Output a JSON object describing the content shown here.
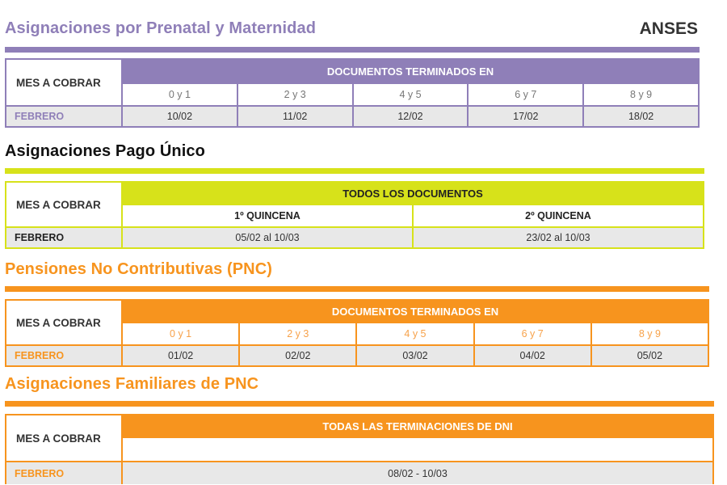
{
  "brand": "ANSES",
  "colors": {
    "purple": "#8f7fb8",
    "yellow": "#d7e21a",
    "orange": "#f7941e",
    "row_gray": "#e8e8e8"
  },
  "sections": [
    {
      "title": "Asignaciones por Prenatal y Maternidad",
      "mes_label": "MES A COBRAR",
      "header": "DOCUMENTOS TERMINADOS EN",
      "columns": [
        "0 y 1",
        "2 y 3",
        "4 y 5",
        "6 y 7",
        "8 y 9"
      ],
      "month": "FEBRERO",
      "values": [
        "10/02",
        "11/02",
        "12/02",
        "17/02",
        "18/02"
      ]
    },
    {
      "title": "Asignaciones Pago Único",
      "mes_label": "MES A COBRAR",
      "header": "TODOS LOS DOCUMENTOS",
      "columns": [
        "1º QUINCENA",
        "2º QUINCENA"
      ],
      "month": "FEBRERO",
      "values": [
        "05/02 al 10/03",
        "23/02 al 10/03"
      ]
    },
    {
      "title": "Pensiones No Contributivas (PNC)",
      "mes_label": "MES A COBRAR",
      "header": "DOCUMENTOS TERMINADOS EN",
      "columns": [
        "0 y 1",
        "2 y 3",
        "4 y 5",
        "6 y 7",
        "8 y 9"
      ],
      "month": "FEBRERO",
      "values": [
        "01/02",
        "02/02",
        "03/02",
        "04/02",
        "05/02"
      ]
    },
    {
      "title": "Asignaciones Familiares de PNC",
      "mes_label": "MES A COBRAR",
      "header": "TODAS LAS TERMINACIONES DE DNI",
      "month": "FEBRERO",
      "values": [
        "08/02 - 10/03"
      ]
    }
  ]
}
